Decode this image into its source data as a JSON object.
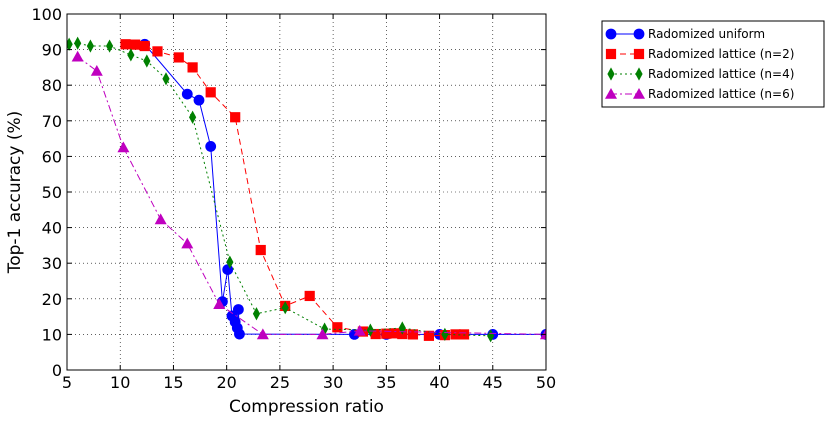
{
  "chart_data": {
    "type": "line",
    "title": "",
    "xlabel": "Compression ratio",
    "ylabel": "Top-1 accuracy (%)",
    "xlim": [
      5,
      50
    ],
    "ylim": [
      0,
      100
    ],
    "xticks": [
      5,
      10,
      15,
      20,
      25,
      30,
      35,
      40,
      45,
      50
    ],
    "yticks": [
      0,
      10,
      20,
      30,
      40,
      50,
      60,
      70,
      80,
      90,
      100
    ],
    "grid": true,
    "legend_position": "outside top-right",
    "series": [
      {
        "name": "Radomized uniform",
        "color": "#0000ff",
        "marker": "circle",
        "line": "solid",
        "x": [
          12.3,
          16.3,
          17.4,
          18.5,
          19.6,
          20.1,
          20.5,
          20.8,
          21.0,
          21.1,
          21.2,
          32.0,
          35.0,
          40.0,
          45.0,
          50.0
        ],
        "y": [
          91.5,
          77.5,
          75.8,
          62.8,
          19.2,
          28.2,
          15.2,
          13.5,
          11.8,
          17.0,
          10.1,
          10.0,
          10.0,
          10.0,
          10.0,
          10.0
        ]
      },
      {
        "name": "Radomized lattice (n=2)",
        "color": "#ff0000",
        "marker": "square",
        "line": "dashed",
        "x": [
          10.5,
          11.4,
          12.3,
          13.5,
          15.5,
          16.8,
          18.5,
          20.8,
          23.2,
          25.5,
          27.8,
          30.4,
          32.8,
          34.0,
          35.0,
          35.8,
          36.5,
          37.5,
          39.0,
          40.5,
          41.5,
          42.3
        ],
        "y": [
          91.5,
          91.4,
          91.0,
          89.5,
          87.8,
          85.0,
          78.0,
          71.0,
          33.7,
          18.0,
          20.8,
          12.0,
          10.8,
          10.1,
          10.2,
          10.3,
          10.1,
          10.0,
          9.6,
          9.8,
          10.0,
          10.0
        ]
      },
      {
        "name": "Radomized lattice (n=4)",
        "color": "#008000",
        "marker": "diamond",
        "line": "dotted",
        "x": [
          5.2,
          6.0,
          7.2,
          9.0,
          11.0,
          12.5,
          14.3,
          16.8,
          20.3,
          22.8,
          25.5,
          29.2,
          33.5,
          36.5,
          40.5,
          44.8
        ],
        "y": [
          91.5,
          91.8,
          91.0,
          91.0,
          88.5,
          86.8,
          81.8,
          71.0,
          30.3,
          15.8,
          17.5,
          11.5,
          11.2,
          11.8,
          10.0,
          9.6
        ]
      },
      {
        "name": "Radomized lattice (n=6)",
        "color": "#bf00bf",
        "marker": "triangle",
        "line": "dashdot",
        "x": [
          6.0,
          7.8,
          10.3,
          13.8,
          16.3,
          19.3,
          23.4,
          29.0,
          32.5,
          50.0
        ],
        "y": [
          88.0,
          84.0,
          62.5,
          42.3,
          35.5,
          18.5,
          10.0,
          10.0,
          11.0,
          10.0
        ]
      }
    ]
  }
}
